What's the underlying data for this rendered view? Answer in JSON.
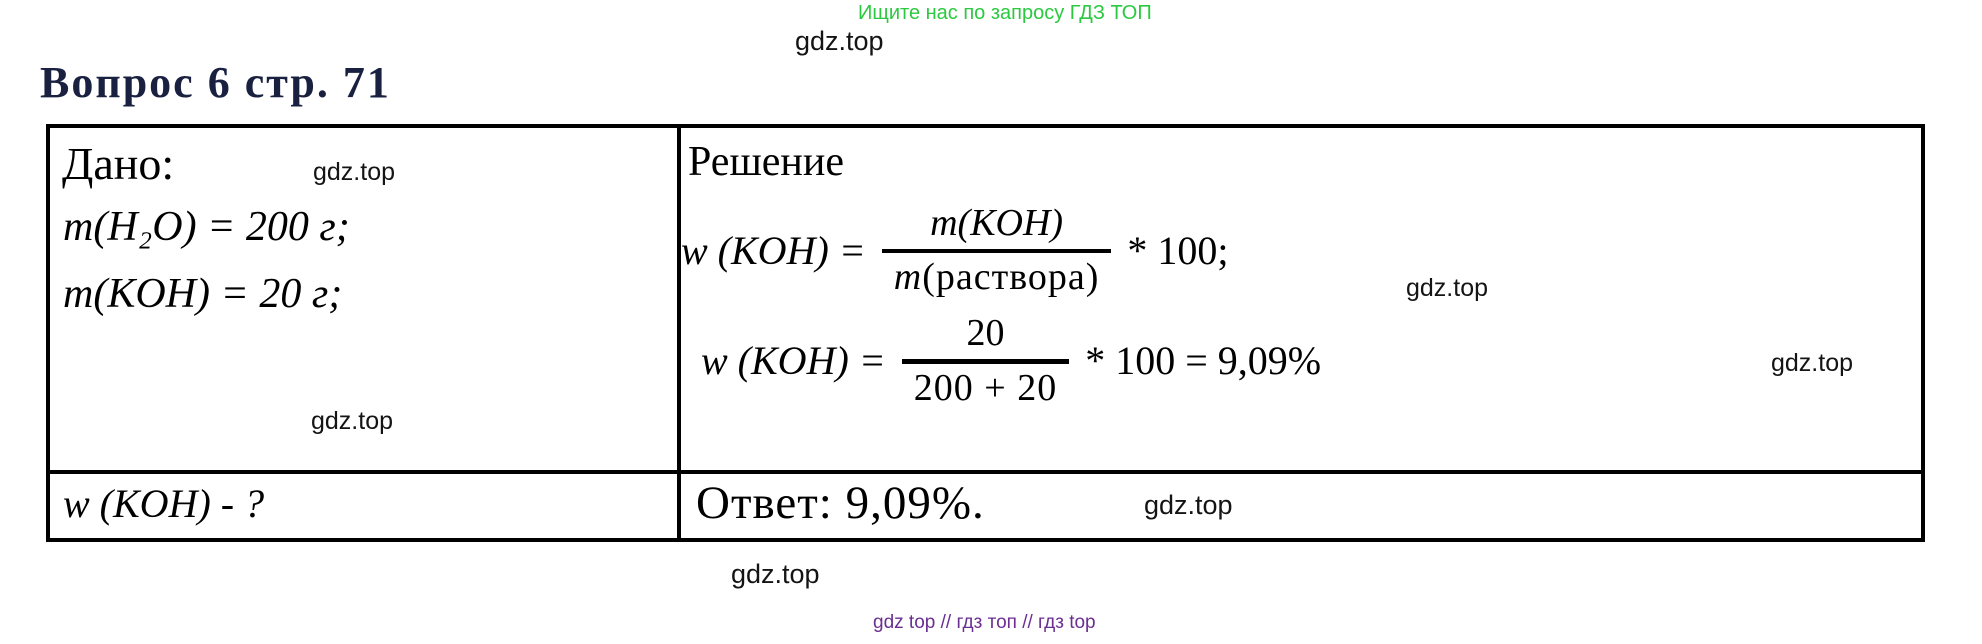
{
  "page": {
    "promo_text": "Ищите нас по запросу ГДЗ ТОП",
    "promo_color": "#2bc940",
    "watermark": "gdz.top",
    "title": "Вопрос 6 стр. 71",
    "title_color": "#1a2140",
    "footer_links": "gdz top  //  гдз топ  //  гдз top",
    "footer_color": "#6b2e91"
  },
  "problem": {
    "given_header": "Дано:",
    "given_lines": [
      "m(H₂O) = 200 г;",
      "m(KOH) = 20 г;"
    ],
    "find_text": "w (KOH) - ?",
    "solution_header": "Решение",
    "formula1": {
      "lhs": "w (KOH) =",
      "numerator": "m(KOH)",
      "denominator_prefix": "m",
      "denominator_text": "(раствора)",
      "rhs": "* 100;"
    },
    "formula2": {
      "lhs": "w (KOH) =",
      "numerator": "20",
      "denominator": "200 + 20",
      "rhs": "* 100 = 9,09%"
    },
    "answer": "Ответ: 9,09%."
  }
}
